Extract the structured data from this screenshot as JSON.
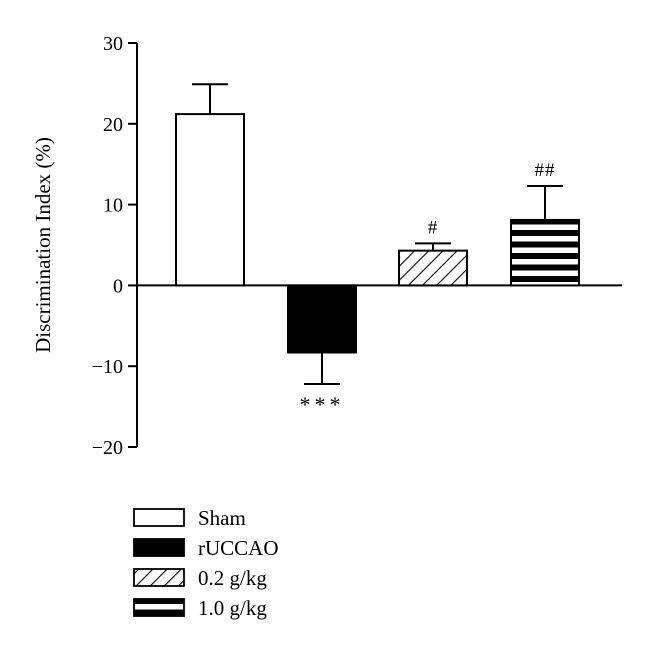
{
  "chart_data": {
    "type": "bar",
    "ylabel": "Discrimination Index (%)",
    "ylim": [
      -20,
      30
    ],
    "yticks": [
      -20,
      -10,
      0,
      10,
      20,
      30
    ],
    "ytick_labels": [
      "−20",
      "−10",
      "0",
      "10",
      "20",
      "30"
    ],
    "grid": false,
    "legend_position": "bottom-left",
    "categories": [
      "Sham",
      "rUCCAO",
      "0.2 g/kg",
      "1.0 g/kg"
    ],
    "values": [
      21.2,
      -8.3,
      4.3,
      8.1
    ],
    "errors": [
      3.7,
      3.9,
      0.9,
      4.2
    ],
    "annotations": [
      "",
      "***",
      "#",
      "##"
    ],
    "fills": [
      "white",
      "black",
      "diagonal-hatch",
      "horizontal-stripes"
    ]
  }
}
